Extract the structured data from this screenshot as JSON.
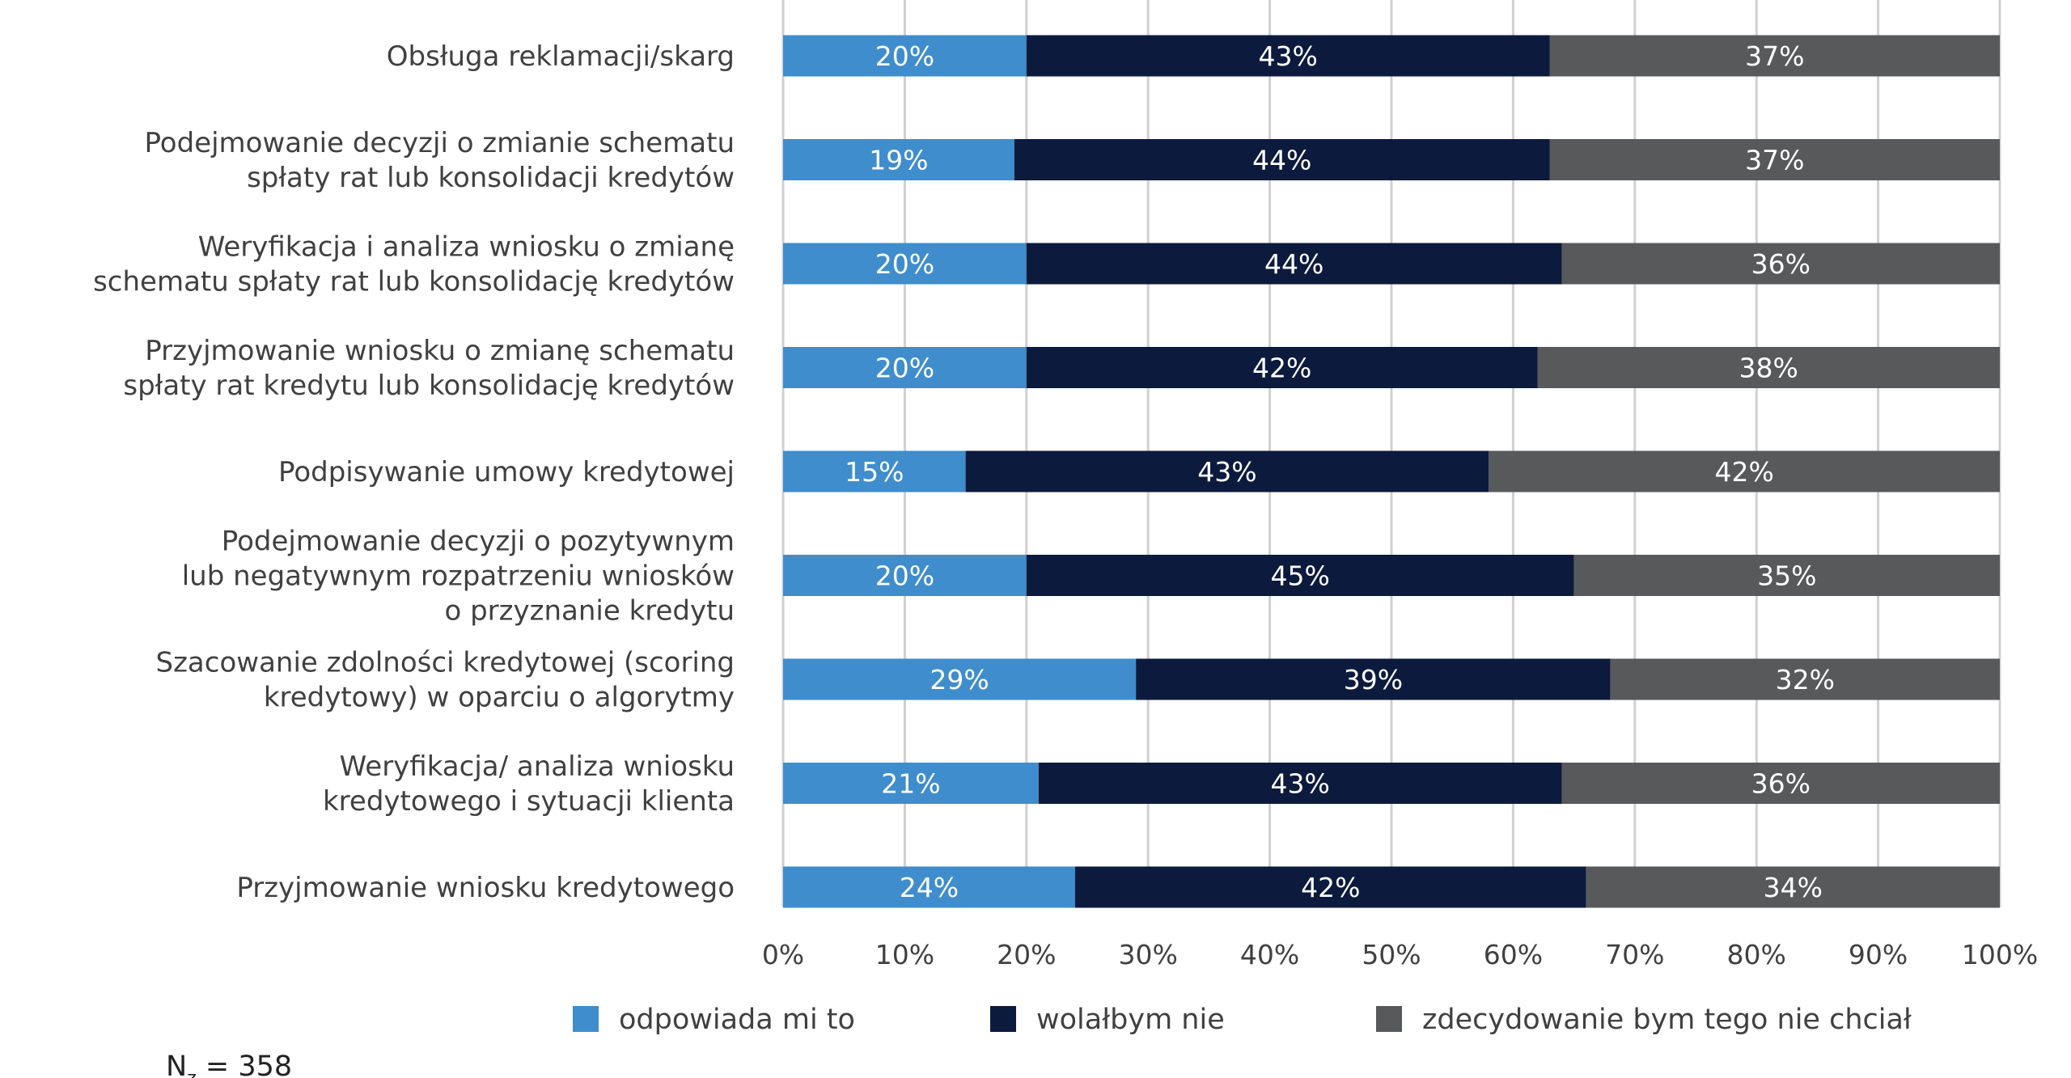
{
  "chart_data": {
    "type": "bar",
    "orientation": "horizontal",
    "stacked": true,
    "categories": [
      [
        "Obsługa reklamacji/skarg"
      ],
      [
        "Podejmowanie decyzji o zmianie schematu",
        "spłaty rat lub konsolidacji kredytów"
      ],
      [
        "Weryfikacja i analiza wniosku o zmianę",
        "schematu spłaty rat lub konsolidację kredytów"
      ],
      [
        "Przyjmowanie wniosku o zmianę schematu",
        "spłaty rat kredytu lub konsolidację kredytów"
      ],
      [
        "Podpisywanie umowy kredytowej"
      ],
      [
        "Podejmowanie decyzji o pozytywnym",
        "lub negatywnym rozpatrzeniu wniosków",
        "o przyznanie kredytu"
      ],
      [
        "Szacowanie zdolności kredytowej (scoring",
        "kredytowy) w oparciu o algorytmy"
      ],
      [
        "Weryfikacja/ analiza wniosku",
        "kredytowego i sytuacji klienta"
      ],
      [
        "Przyjmowanie wniosku kredytowego"
      ]
    ],
    "series": [
      {
        "name": "odpowiada mi to",
        "color": "#3f8dcc",
        "values": [
          20,
          19,
          20,
          20,
          15,
          20,
          29,
          21,
          24
        ]
      },
      {
        "name": "wolałbym nie",
        "color": "#0c1a3d",
        "values": [
          43,
          44,
          44,
          42,
          43,
          45,
          39,
          43,
          42
        ]
      },
      {
        "name": "zdecydowanie bym tego nie chciał",
        "color": "#58595b",
        "values": [
          37,
          37,
          36,
          38,
          42,
          35,
          32,
          36,
          34
        ]
      }
    ],
    "xlim": [
      0,
      100
    ],
    "x_ticks": [
      "0%",
      "10%",
      "20%",
      "30%",
      "40%",
      "50%",
      "60%",
      "70%",
      "80%",
      "90%",
      "100%"
    ],
    "grid": "vertical",
    "legend_position": "bottom"
  },
  "note": {
    "prefix": "N",
    "subscript": "z",
    "suffix": " = 358"
  }
}
